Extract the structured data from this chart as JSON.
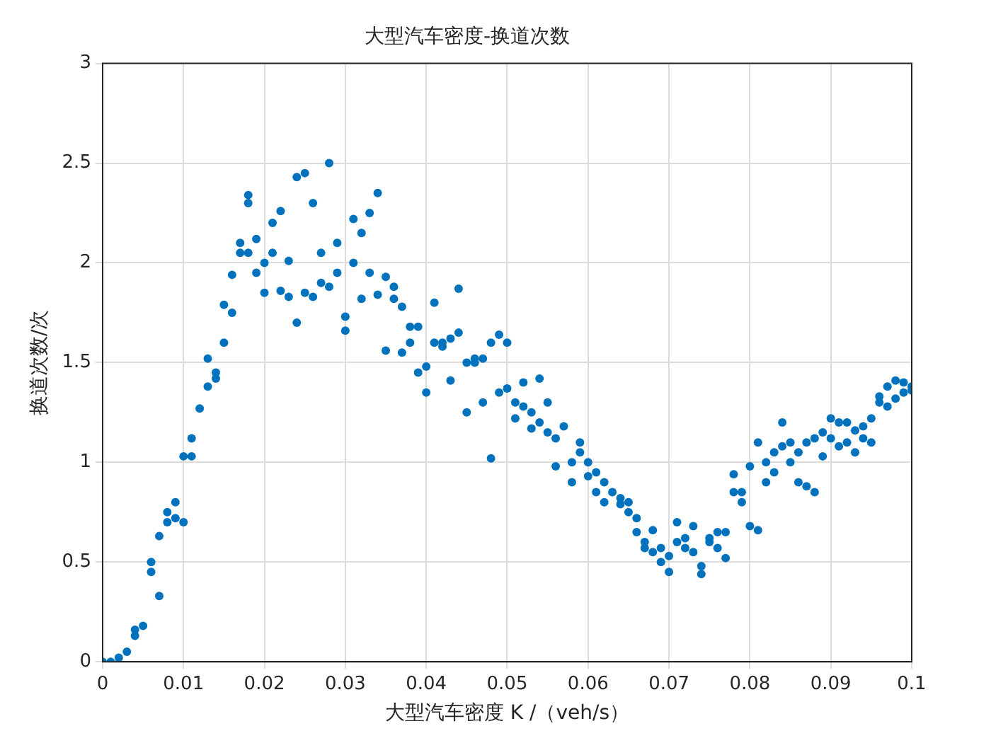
{
  "chart_data": {
    "type": "scatter",
    "title": "大型汽车密度-换道次数",
    "xlabel": "大型汽车密度 K /（veh/s）",
    "ylabel": "换道次数/次",
    "xlim": [
      0,
      0.1
    ],
    "ylim": [
      0,
      3
    ],
    "xticks": [
      0,
      0.01,
      0.02,
      0.03,
      0.04,
      0.05,
      0.06,
      0.07,
      0.08,
      0.09,
      0.1
    ],
    "yticks": [
      0,
      0.5,
      1,
      1.5,
      2,
      2.5,
      3
    ],
    "grid": true,
    "marker": "circle",
    "series": [
      {
        "color": "#0072bd",
        "x": [
          0,
          0.001,
          0.002,
          0.003,
          0.004,
          0.004,
          0.005,
          0.006,
          0.006,
          0.007,
          0.007,
          0.008,
          0.008,
          0.009,
          0.009,
          0.01,
          0.01,
          0.011,
          0.011,
          0.012,
          0.013,
          0.013,
          0.014,
          0.014,
          0.015,
          0.015,
          0.016,
          0.016,
          0.017,
          0.017,
          0.018,
          0.018,
          0.018,
          0.019,
          0.019,
          0.02,
          0.02,
          0.021,
          0.021,
          0.022,
          0.022,
          0.023,
          0.023,
          0.024,
          0.024,
          0.025,
          0.025,
          0.026,
          0.026,
          0.027,
          0.027,
          0.028,
          0.028,
          0.029,
          0.029,
          0.03,
          0.03,
          0.031,
          0.031,
          0.032,
          0.032,
          0.033,
          0.033,
          0.034,
          0.034,
          0.035,
          0.035,
          0.036,
          0.036,
          0.037,
          0.037,
          0.038,
          0.038,
          0.039,
          0.039,
          0.04,
          0.04,
          0.041,
          0.041,
          0.042,
          0.042,
          0.043,
          0.043,
          0.044,
          0.044,
          0.045,
          0.045,
          0.046,
          0.046,
          0.047,
          0.047,
          0.048,
          0.048,
          0.049,
          0.049,
          0.05,
          0.05,
          0.051,
          0.051,
          0.052,
          0.052,
          0.053,
          0.053,
          0.054,
          0.054,
          0.055,
          0.055,
          0.056,
          0.056,
          0.057,
          0.058,
          0.058,
          0.059,
          0.059,
          0.06,
          0.06,
          0.061,
          0.061,
          0.062,
          0.062,
          0.063,
          0.064,
          0.064,
          0.065,
          0.065,
          0.066,
          0.066,
          0.067,
          0.067,
          0.068,
          0.068,
          0.069,
          0.069,
          0.07,
          0.07,
          0.071,
          0.071,
          0.072,
          0.072,
          0.073,
          0.073,
          0.074,
          0.074,
          0.075,
          0.075,
          0.076,
          0.076,
          0.077,
          0.077,
          0.078,
          0.078,
          0.079,
          0.079,
          0.08,
          0.08,
          0.081,
          0.081,
          0.082,
          0.082,
          0.083,
          0.083,
          0.084,
          0.084,
          0.085,
          0.085,
          0.086,
          0.086,
          0.087,
          0.087,
          0.088,
          0.088,
          0.089,
          0.089,
          0.09,
          0.09,
          0.091,
          0.091,
          0.092,
          0.092,
          0.093,
          0.093,
          0.094,
          0.094,
          0.095,
          0.095,
          0.096,
          0.096,
          0.097,
          0.097,
          0.098,
          0.098,
          0.099,
          0.099,
          0.1,
          0.1
        ],
        "values": [
          0,
          0,
          0.02,
          0.05,
          0.13,
          0.16,
          0.18,
          0.45,
          0.5,
          0.63,
          0.33,
          0.7,
          0.75,
          0.8,
          0.72,
          1.03,
          0.7,
          1.03,
          1.12,
          1.27,
          1.52,
          1.38,
          1.42,
          1.45,
          1.6,
          1.79,
          1.75,
          1.94,
          2.1,
          2.05,
          2.3,
          2.34,
          2.05,
          1.95,
          2.12,
          2,
          1.85,
          2.05,
          2.2,
          1.86,
          2.26,
          1.83,
          2.01,
          1.7,
          2.43,
          1.85,
          2.45,
          2.3,
          1.83,
          2.05,
          1.9,
          2.5,
          1.88,
          2.1,
          1.95,
          1.73,
          1.66,
          2.22,
          2,
          1.82,
          2.15,
          2.25,
          1.95,
          2.35,
          1.84,
          1.56,
          1.93,
          1.82,
          1.88,
          1.78,
          1.55,
          1.6,
          1.68,
          1.68,
          1.45,
          1.35,
          1.48,
          1.8,
          1.6,
          1.58,
          1.6,
          1.62,
          1.41,
          1.65,
          1.87,
          1.5,
          1.25,
          1.5,
          1.52,
          1.3,
          1.52,
          1.6,
          1.02,
          1.64,
          1.35,
          1.6,
          1.37,
          1.3,
          1.22,
          1.28,
          1.4,
          1.25,
          1.17,
          1.42,
          1.2,
          1.15,
          1.3,
          0.98,
          1.12,
          1.18,
          1,
          0.9,
          1.05,
          1.1,
          1,
          0.93,
          0.85,
          0.95,
          0.8,
          0.9,
          0.85,
          0.79,
          0.82,
          0.8,
          0.75,
          0.65,
          0.72,
          0.57,
          0.6,
          0.55,
          0.66,
          0.5,
          0.57,
          0.45,
          0.53,
          0.6,
          0.7,
          0.57,
          0.62,
          0.68,
          0.55,
          0.44,
          0.48,
          0.62,
          0.6,
          0.57,
          0.65,
          0.52,
          0.65,
          0.85,
          0.94,
          0.85,
          0.8,
          0.98,
          0.68,
          1.1,
          0.66,
          0.9,
          1,
          0.95,
          1.05,
          1.08,
          1.2,
          1,
          1.1,
          0.9,
          1.05,
          0.88,
          1.1,
          0.85,
          1.12,
          1.03,
          1.15,
          1.22,
          1.12,
          1.2,
          1.08,
          1.1,
          1.2,
          1.05,
          1.16,
          1.12,
          1.18,
          1.1,
          1.22,
          1.3,
          1.33,
          1.38,
          1.28,
          1.32,
          1.41,
          1.35,
          1.4,
          1.36,
          1.38
        ]
      }
    ]
  }
}
